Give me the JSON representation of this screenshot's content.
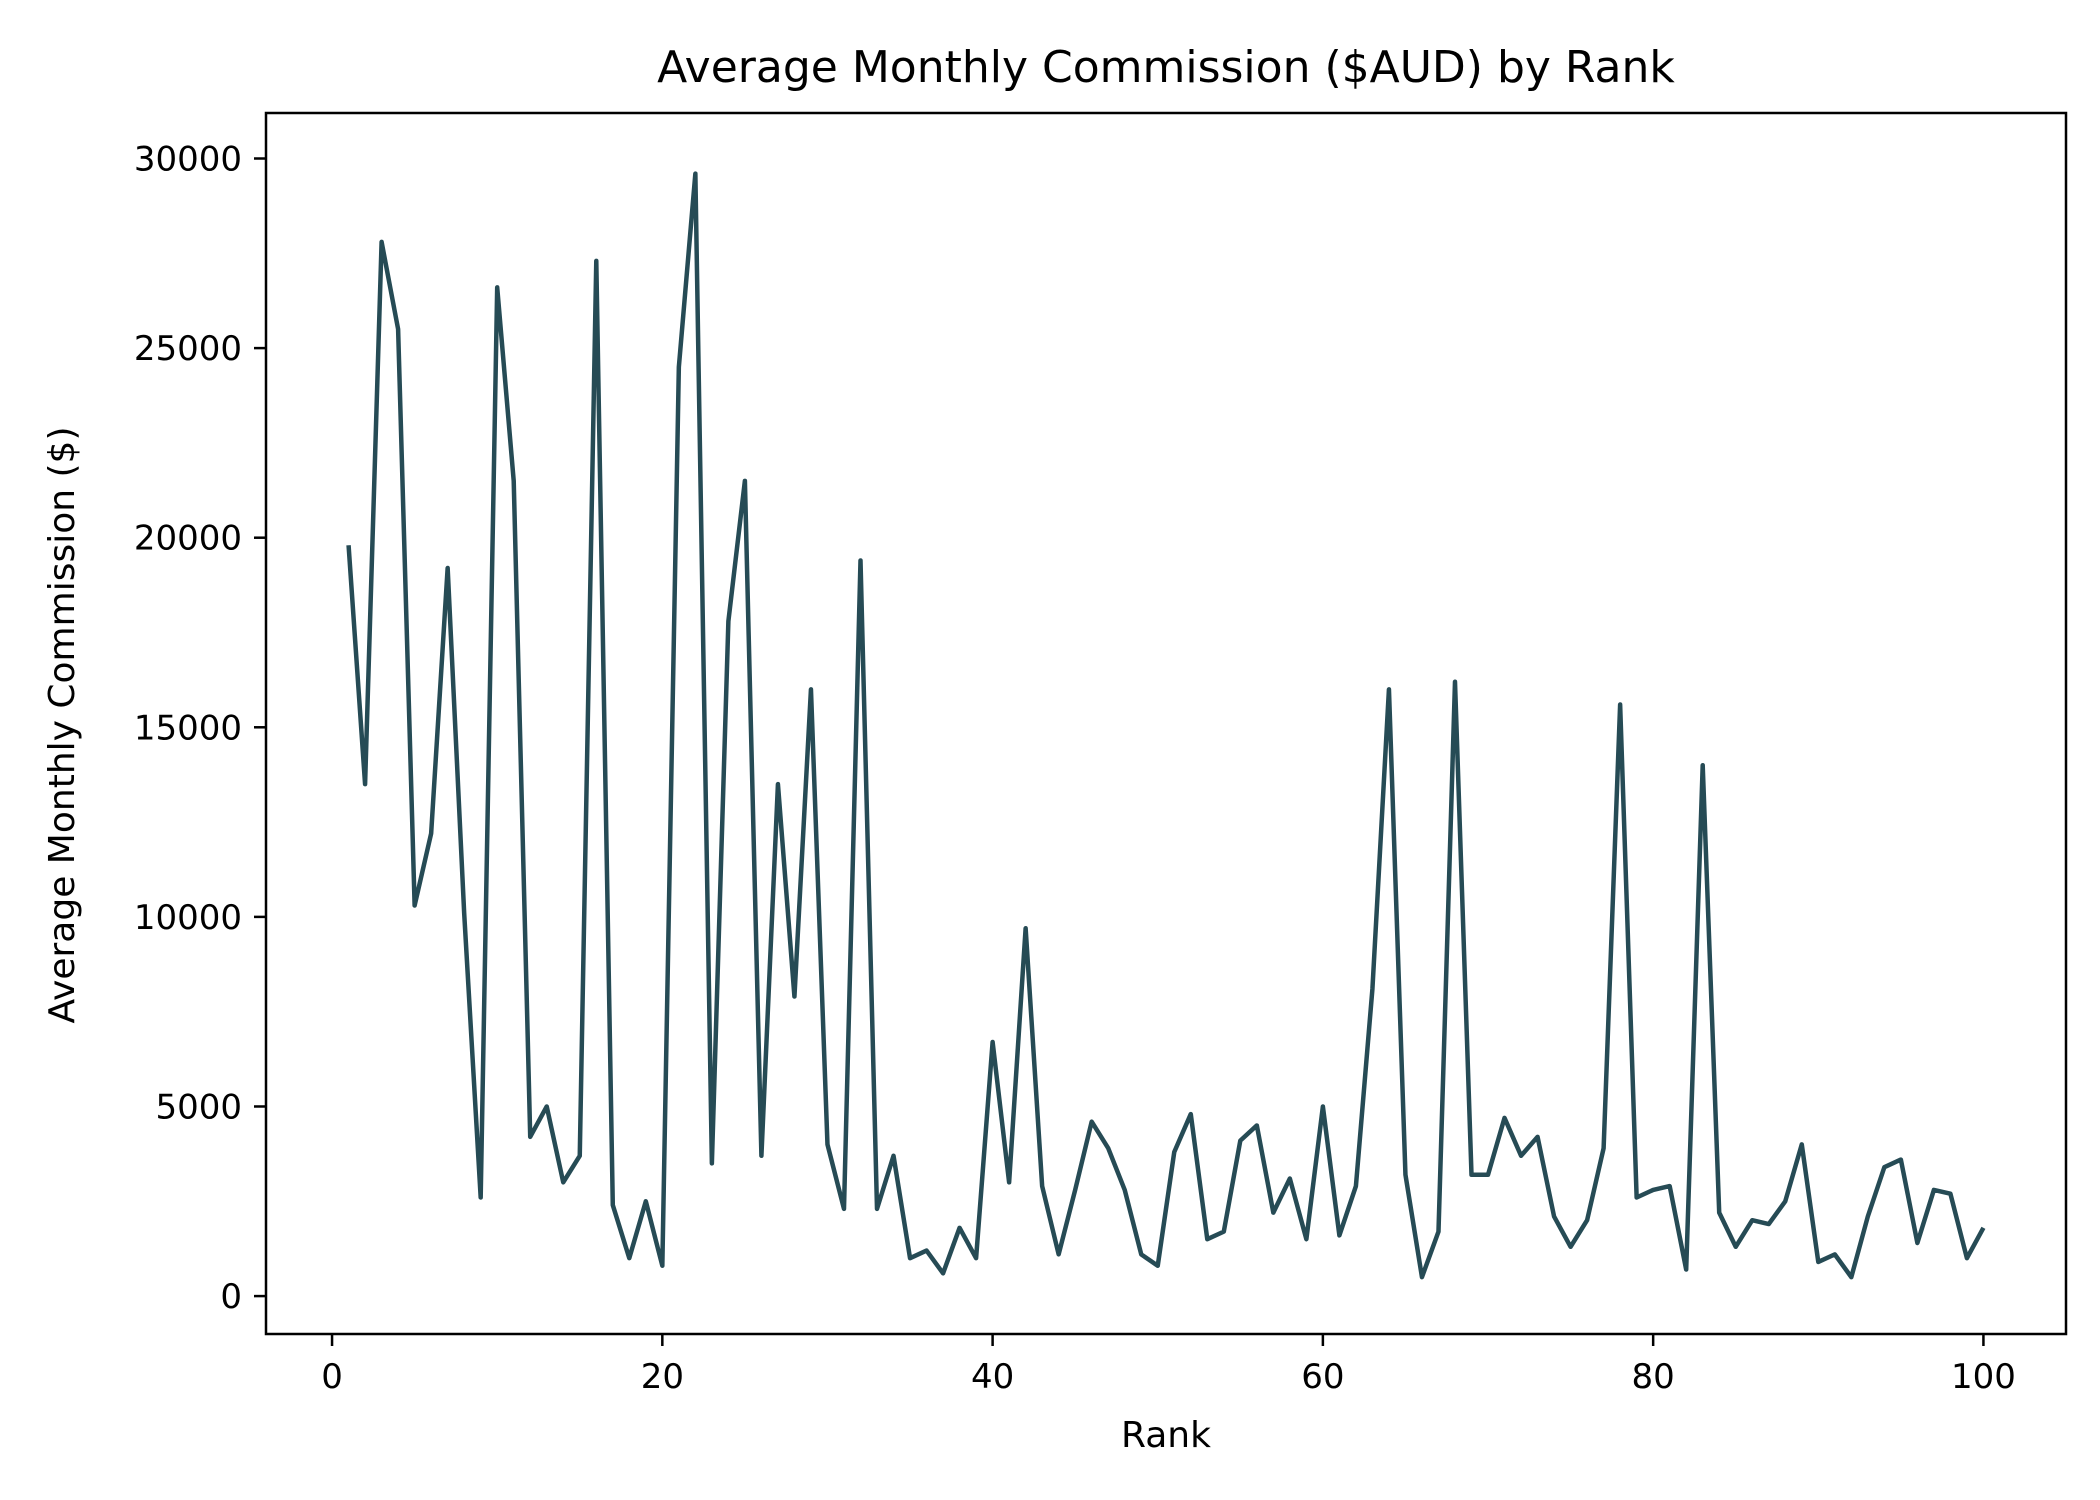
{
  "chart_data": {
    "type": "line",
    "title": "Average Monthly Commission ($AUD) by Rank",
    "xlabel": "Rank",
    "ylabel": "Average Monthly Commission ($)",
    "xlim": [
      -4,
      105
    ],
    "ylim": [
      -1000,
      31200
    ],
    "xticks": [
      0,
      20,
      40,
      60,
      80,
      100
    ],
    "yticks": [
      0,
      5000,
      10000,
      15000,
      20000,
      25000,
      30000
    ],
    "grid": false,
    "legend": "none",
    "line_color": "#264b55",
    "series": [
      {
        "x": [
          1,
          2,
          3,
          4,
          5,
          6,
          7,
          8,
          9,
          10,
          11,
          12,
          13,
          14,
          15,
          16,
          17,
          18,
          19,
          20,
          21,
          22,
          23,
          24,
          25,
          26,
          27,
          28,
          29,
          30,
          31,
          32,
          33,
          34,
          35,
          36,
          37,
          38,
          39,
          40,
          41,
          42,
          43,
          44,
          45,
          46,
          47,
          48,
          49,
          50,
          51,
          52,
          53,
          54,
          55,
          56,
          57,
          58,
          59,
          60,
          61,
          62,
          63,
          64,
          65,
          66,
          67,
          68,
          69,
          70,
          71,
          72,
          73,
          74,
          75,
          76,
          77,
          78,
          79,
          80,
          81,
          82,
          83,
          84,
          85,
          86,
          87,
          88,
          89,
          90,
          91,
          92,
          93,
          94,
          95,
          96,
          97,
          98,
          99,
          100
        ],
        "y": [
          19800,
          13500,
          27800,
          25500,
          10300,
          12200,
          19200,
          10100,
          2600,
          26600,
          21500,
          4200,
          5000,
          3000,
          3700,
          27300,
          2400,
          1000,
          2500,
          800,
          24500,
          29600,
          3500,
          17800,
          21500,
          3700,
          13500,
          7900,
          16000,
          4000,
          2300,
          19400,
          2300,
          3700,
          1000,
          1200,
          600,
          1800,
          1000,
          6700,
          3000,
          9700,
          2900,
          1100,
          2800,
          4600,
          3900,
          2800,
          1100,
          800,
          3800,
          4800,
          1500,
          1700,
          4100,
          4500,
          2200,
          3100,
          1500,
          5000,
          1600,
          2900,
          8100,
          16000,
          3200,
          500,
          1700,
          16200,
          3200,
          3200,
          4700,
          3700,
          4200,
          2100,
          1300,
          2000,
          3900,
          15600,
          2600,
          2800,
          2900,
          700,
          14000,
          2200,
          1300,
          2000,
          1900,
          2500,
          4000,
          900,
          1100,
          500,
          2100,
          3400,
          3600,
          1400,
          2800,
          2700,
          1000,
          1800
        ]
      }
    ]
  }
}
